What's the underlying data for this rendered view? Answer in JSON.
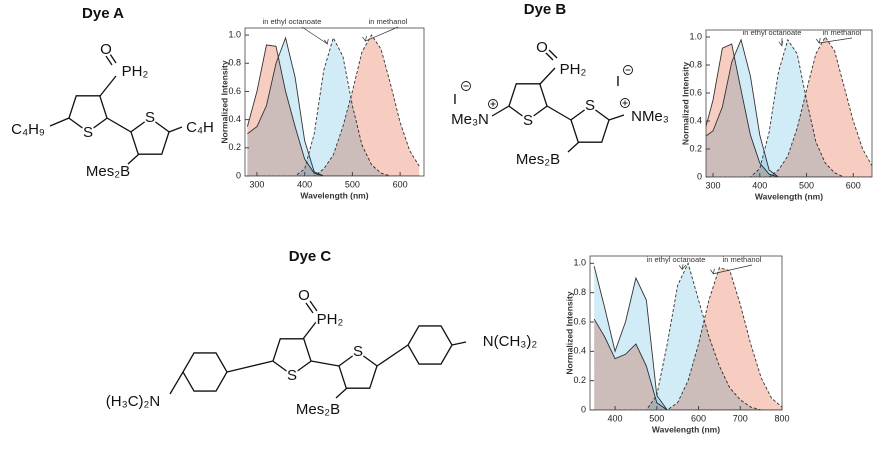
{
  "structures": [
    {
      "title": "Dye A",
      "labels": [
        "O",
        "PH₂",
        "S",
        "S",
        "C₄H₉",
        "C₄H",
        "Mes₂B"
      ]
    },
    {
      "title": "Dye B",
      "labels": [
        "O",
        "PH₂",
        "S",
        "S",
        "I",
        "I",
        "Me₃N",
        "NMe₃",
        "Mes₂B"
      ]
    },
    {
      "title": "Dye C",
      "labels": [
        "O",
        "PH₂",
        "S",
        "S",
        "Mes₂B",
        "N(CH₃)₂",
        "(H₃C)₂N"
      ]
    }
  ],
  "chart_data": [
    {
      "type": "area",
      "xlabel": "Wavelength (nm)",
      "ylabel": "Normalized Intensity",
      "annotations": [
        "in ethyl octanoate",
        "in methanol"
      ],
      "x": [
        280,
        300,
        320,
        340,
        360,
        380,
        400,
        420,
        440,
        460,
        480,
        500,
        520,
        540,
        560,
        580,
        600,
        620,
        640
      ],
      "xlim": [
        275,
        650
      ],
      "xticks": [
        300,
        400,
        500,
        600
      ],
      "ylim": [
        0,
        1.05
      ],
      "yticks": [
        0,
        0.2,
        0.4,
        0.6,
        0.8,
        {
          "value": 1,
          "label": "1.0"
        }
      ],
      "line_color": "#333333",
      "series": [
        {
          "color": "#f4b6a6",
          "dashed": false,
          "values": [
            0.35,
            0.6,
            0.93,
            0.92,
            0.6,
            0.35,
            0.12,
            0.02,
            0,
            0,
            0,
            0,
            0,
            0,
            0,
            0,
            0,
            0,
            0
          ]
        },
        {
          "color": "#bfe4f4",
          "dashed": false,
          "values": [
            0.3,
            0.35,
            0.5,
            0.8,
            0.98,
            0.7,
            0.25,
            0.03,
            0,
            0,
            0,
            0,
            0,
            0,
            0,
            0,
            0,
            0,
            0
          ]
        },
        {
          "color": "#bfe4f4",
          "dashed": true,
          "values": [
            0,
            0,
            0,
            0,
            0,
            0,
            0.05,
            0.3,
            0.75,
            0.98,
            0.85,
            0.5,
            0.22,
            0.08,
            0.02,
            0,
            0,
            0,
            0
          ]
        },
        {
          "color": "#f4b6a6",
          "dashed": true,
          "values": [
            0,
            0,
            0,
            0,
            0,
            0,
            0,
            0,
            0.05,
            0.15,
            0.35,
            0.6,
            0.88,
            1.0,
            0.9,
            0.65,
            0.38,
            0.18,
            0.07
          ]
        }
      ]
    },
    {
      "type": "area",
      "xlabel": "Wavelength (nm)",
      "ylabel": "Normalized Intensity",
      "annotations": [
        "in ethyl octanoate",
        "in methanol"
      ],
      "x": [
        280,
        300,
        320,
        340,
        360,
        380,
        400,
        420,
        440,
        460,
        480,
        500,
        520,
        540,
        560,
        580,
        600,
        620,
        640
      ],
      "xlim": [
        285,
        640
      ],
      "xticks": [
        300,
        400,
        500,
        600
      ],
      "ylim": [
        0,
        1.05
      ],
      "yticks": [
        0,
        0.2,
        0.4,
        0.6,
        0.8,
        {
          "value": 1,
          "label": "1.0"
        }
      ],
      "line_color": "#333333",
      "series": [
        {
          "color": "#f4b6a6",
          "dashed": false,
          "values": [
            0.3,
            0.55,
            0.92,
            0.95,
            0.62,
            0.3,
            0.1,
            0.02,
            0,
            0,
            0,
            0,
            0,
            0,
            0,
            0,
            0,
            0,
            0
          ]
        },
        {
          "color": "#bfe4f4",
          "dashed": false,
          "values": [
            0.28,
            0.33,
            0.5,
            0.82,
            0.98,
            0.72,
            0.3,
            0.05,
            0,
            0,
            0,
            0,
            0,
            0,
            0,
            0,
            0,
            0,
            0
          ]
        },
        {
          "color": "#bfe4f4",
          "dashed": true,
          "values": [
            0,
            0,
            0,
            0,
            0,
            0,
            0.06,
            0.32,
            0.75,
            0.98,
            0.88,
            0.55,
            0.25,
            0.1,
            0.03,
            0,
            0,
            0,
            0
          ]
        },
        {
          "color": "#f4b6a6",
          "dashed": true,
          "values": [
            0,
            0,
            0,
            0,
            0,
            0,
            0,
            0,
            0.05,
            0.15,
            0.35,
            0.62,
            0.88,
            1.0,
            0.9,
            0.65,
            0.4,
            0.2,
            0.08
          ]
        }
      ]
    },
    {
      "type": "area",
      "xlabel": "Wavelength (nm)",
      "ylabel": "Normalized Intensity",
      "annotations": [
        "in ethyl octanoate",
        "in methanol"
      ],
      "x": [
        350,
        375,
        400,
        425,
        450,
        475,
        500,
        525,
        550,
        575,
        600,
        625,
        650,
        675,
        700,
        725,
        750,
        775,
        800
      ],
      "xlim": [
        340,
        800
      ],
      "xticks": [
        400,
        500,
        600,
        700,
        800
      ],
      "ylim": [
        0,
        1.05
      ],
      "yticks": [
        0,
        0.2,
        0.4,
        0.6,
        0.8,
        {
          "value": 1,
          "label": "1.0"
        }
      ],
      "line_color": "#333333",
      "series": [
        {
          "color": "#f4b6a6",
          "dashed": false,
          "values": [
            0.62,
            0.5,
            0.35,
            0.38,
            0.45,
            0.3,
            0.05,
            0,
            0,
            0,
            0,
            0,
            0,
            0,
            0,
            0,
            0,
            0,
            0
          ]
        },
        {
          "color": "#bfe4f4",
          "dashed": false,
          "values": [
            0.98,
            0.7,
            0.4,
            0.6,
            0.9,
            0.75,
            0.1,
            0,
            0,
            0,
            0,
            0,
            0,
            0,
            0,
            0,
            0,
            0,
            0
          ]
        },
        {
          "color": "#bfe4f4",
          "dashed": true,
          "values": [
            0,
            0,
            0,
            0,
            0,
            0,
            0.1,
            0.45,
            0.85,
            1.0,
            0.75,
            0.5,
            0.3,
            0.15,
            0.07,
            0.02,
            0,
            0,
            0
          ]
        },
        {
          "color": "#f4b6a6",
          "dashed": true,
          "values": [
            0,
            0,
            0,
            0,
            0,
            0,
            0,
            0,
            0.05,
            0.2,
            0.45,
            0.75,
            0.97,
            0.95,
            0.72,
            0.45,
            0.22,
            0.08,
            0.02
          ]
        }
      ]
    }
  ]
}
